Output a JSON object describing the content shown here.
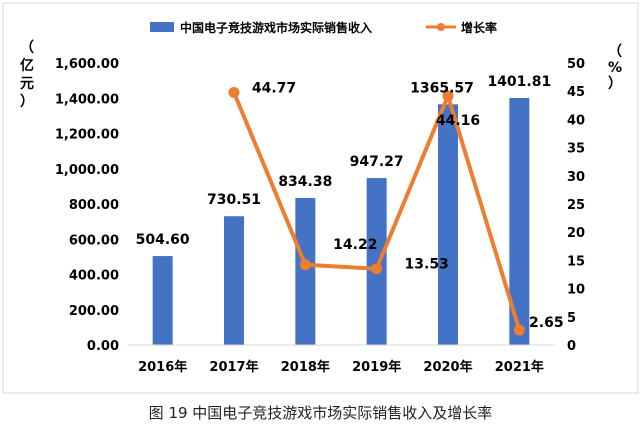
{
  "caption": "图 19 中国电子竞技游戏市场实际销售收入及增长率",
  "chart_data": {
    "type": "bar",
    "categories": [
      "2016年",
      "2017年",
      "2018年",
      "2019年",
      "2020年",
      "2021年"
    ],
    "series": [
      {
        "name": "中国电子竞技游戏市场实际销售收入",
        "type": "bar",
        "axis": "left",
        "color": "#4472c4",
        "values": [
          504.6,
          730.51,
          834.38,
          947.27,
          1365.57,
          1401.81
        ],
        "labels": [
          "504.60",
          "730.51",
          "834.38",
          "947.27",
          "1365.57",
          "1401.81"
        ]
      },
      {
        "name": "增长率",
        "type": "line",
        "axis": "right",
        "color": "#ed7d31",
        "values": [
          null,
          44.77,
          14.22,
          13.53,
          44.16,
          2.65
        ],
        "labels": [
          "",
          "44.77",
          "14.22",
          "13.53",
          "44.16",
          "2.65"
        ]
      }
    ],
    "left_axis": {
      "unit_chars": [
        "（",
        "亿",
        "元",
        "）"
      ],
      "ylim": [
        0,
        1600
      ],
      "ticks": [
        "0.00",
        "200.00",
        "400.00",
        "600.00",
        "800.00",
        "1,000.00",
        "1,200.00",
        "1,400.00",
        "1,600.00"
      ]
    },
    "right_axis": {
      "unit_chars": [
        "（",
        "%",
        "）"
      ],
      "ylim": [
        0,
        50
      ],
      "ticks": [
        "0",
        "5",
        "10",
        "15",
        "20",
        "25",
        "30",
        "35",
        "40",
        "45",
        "50"
      ]
    },
    "legend_position": "top",
    "grid": false
  }
}
